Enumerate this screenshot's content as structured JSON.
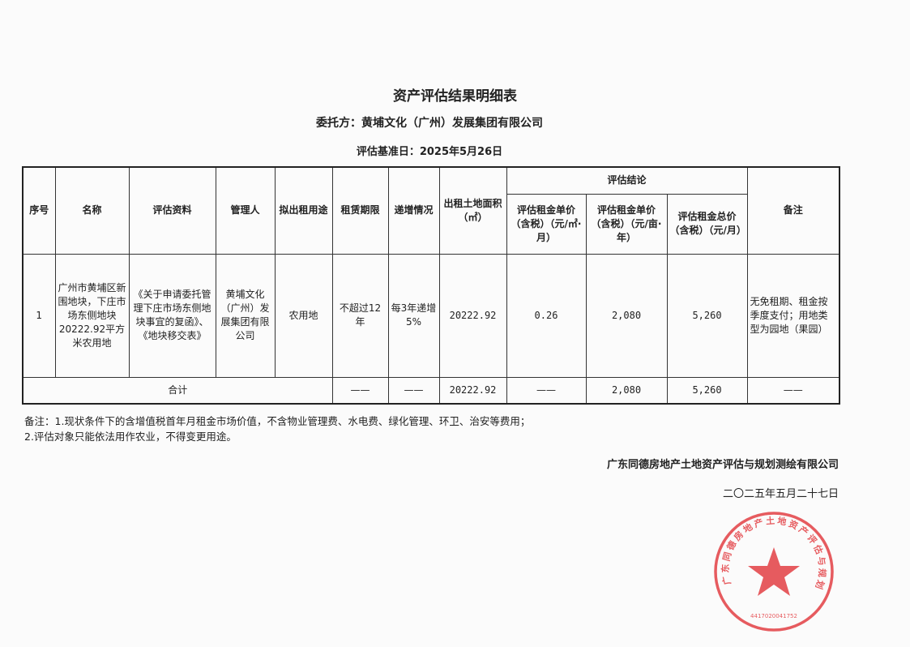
{
  "document": {
    "title": "资产评估结果明细表",
    "client": "委托方：黄埔文化（广州）发展集团有限公司",
    "base_date": "评估基准日：2025年5月26日"
  },
  "table": {
    "headers": {
      "index": "序号",
      "name": "名称",
      "materials": "评估资料",
      "manager": "管理人",
      "use": "拟出租用途",
      "term": "租赁期限",
      "increase": "递增情况",
      "area": "出租土地面积（㎡）",
      "conclusion": "评估结论",
      "unit_price_sqm": "评估租金单价（含税）（元/㎡·月）",
      "unit_price_mu": "评估租金单价（含税）（元/亩·年）",
      "total_price": "评估租金总价（含税）（元/月）",
      "remarks": "备注"
    },
    "rows": [
      {
        "index": "1",
        "name": "广州市黄埔区新围地块，下庄市场东侧地块20222.92平方米农用地",
        "materials": "《关于申请委托管理下庄市场东侧地块事宜的复函》、《地块移交表》",
        "manager": "黄埔文化（广州）发展集团有限公司",
        "use": "农用地",
        "term": "不超过12年",
        "increase": "每3年递增5%",
        "area": "20222.92",
        "unit_price_sqm": "0.26",
        "unit_price_mu": "2,080",
        "total_price": "5,260",
        "remarks": "无免租期、租金按季度支付；用地类型为园地（果园）"
      }
    ],
    "total": {
      "label": "合计",
      "term": "——",
      "increase": "——",
      "area": "20222.92",
      "unit_price_sqm": "——",
      "unit_price_mu": "2,080",
      "total_price": "5,260",
      "remarks": "——"
    }
  },
  "notes": [
    "备注：1.现状条件下的含增值税首年月租金市场价值，不含物业管理费、水电费、绿化管理、环卫、治安等费用；",
    "2.评估对象只能依法用作农业，不得变更用途。"
  ],
  "signature": {
    "company": "广东同德房地产土地资产评估与规划测绘有限公司",
    "date": "二〇二五年五月二十七日"
  },
  "seal": {
    "text": "广东同德房地产土地资产评估与规划测绘有限公司",
    "number": "4417020041752",
    "color": "#e0262b"
  }
}
